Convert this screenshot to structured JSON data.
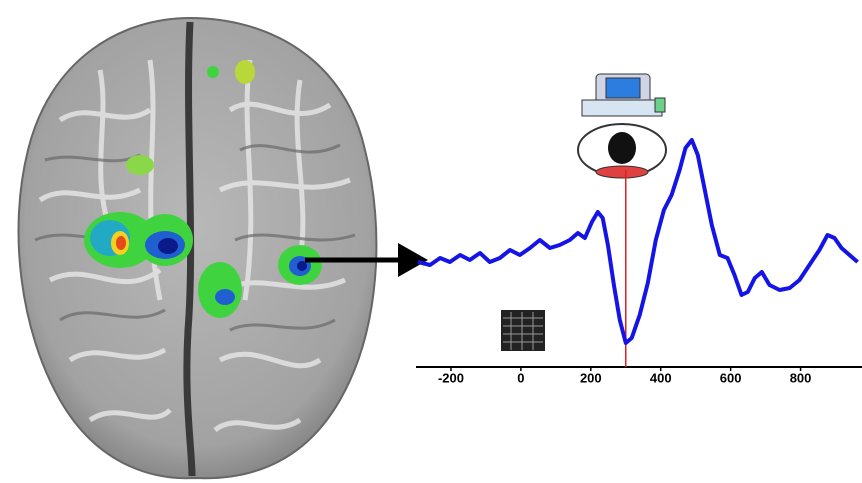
{
  "chart_data": {
    "type": "line",
    "x": [
      -294,
      -260,
      -231,
      -203,
      -174,
      -146,
      -117,
      -89,
      -60,
      -31,
      -3,
      26,
      54,
      83,
      111,
      140,
      163,
      183,
      203,
      220,
      234,
      249,
      266,
      283,
      300,
      317,
      340,
      363,
      386,
      409,
      431,
      454,
      471,
      489,
      506,
      526,
      546,
      569,
      591,
      611,
      631,
      649,
      669,
      689,
      711,
      740,
      769,
      797,
      831,
      854,
      877,
      897,
      917,
      940,
      963
    ],
    "series": [
      {
        "color": "#1414e6",
        "values": [
          105,
          102,
          109,
          105,
          112,
          107,
          114,
          105,
          109,
          117,
          112,
          119,
          127,
          119,
          122,
          127,
          134,
          129,
          145,
          155,
          149,
          122,
          82,
          47,
          24,
          29,
          52,
          84,
          127,
          157,
          172,
          197,
          219,
          227,
          212,
          177,
          142,
          112,
          109,
          92,
          72,
          75,
          89,
          95,
          82,
          77,
          79,
          87,
          105,
          117,
          132,
          129,
          119,
          112,
          105
        ]
      }
    ],
    "xlim": [
      -300,
      970
    ],
    "xticks": [
      -200,
      0,
      200,
      400,
      600,
      800
    ],
    "ylim": [
      0,
      240
    ],
    "vline": {
      "x": 300,
      "color": "#e02020"
    }
  }
}
